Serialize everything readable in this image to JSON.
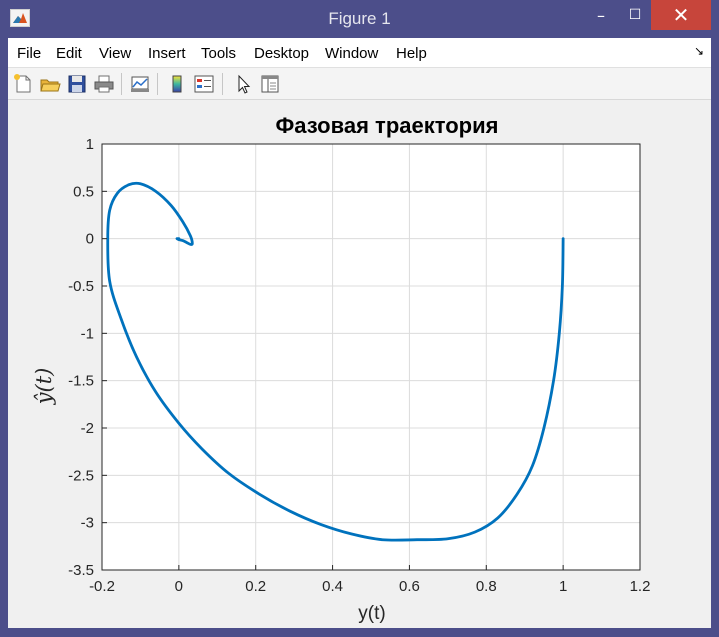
{
  "window": {
    "title": "Figure 1",
    "controls": {
      "minimize": "–",
      "maximize": "☐",
      "close": "✕"
    }
  },
  "menu": {
    "items": [
      "File",
      "Edit",
      "View",
      "Insert",
      "Tools",
      "Desktop",
      "Window",
      "Help"
    ],
    "overflow_arrow": "↘"
  },
  "toolbar": {
    "icons": [
      "new-figure-icon",
      "open-file-icon",
      "save-icon",
      "print-icon",
      "link-plot-icon",
      "insert-colorbar-icon",
      "insert-legend-icon",
      "edit-plot-arrow-icon",
      "property-editor-icon"
    ]
  },
  "colors": {
    "titlebar": "#4c4e8a",
    "close_button": "#c7453b",
    "line": "#0072bd",
    "axes_background": "#ffffff",
    "figure_background": "#f0f0f0"
  },
  "chart_data": {
    "type": "line",
    "title": "Фазовая траектория",
    "xlabel": "y(t)",
    "ylabel": "ŷ(t)",
    "xlim": [
      -0.2,
      1.2
    ],
    "ylim": [
      -3.5,
      1
    ],
    "xticks": [
      -0.2,
      0,
      0.2,
      0.4,
      0.6,
      0.8,
      1,
      1.2
    ],
    "xtick_labels": [
      "-0.2",
      "0",
      "0.2",
      "0.4",
      "0.6",
      "0.8",
      "1",
      "1.2"
    ],
    "yticks": [
      1,
      0.5,
      0,
      -0.5,
      -1,
      -1.5,
      -2,
      -2.5,
      -3,
      -3.5
    ],
    "ytick_labels": [
      "1",
      "0.5",
      "0",
      "-0.5",
      "-1",
      "-1.5",
      "-2",
      "-2.5",
      "-3",
      "-3.5"
    ],
    "grid": true,
    "series": [
      {
        "x": [
          1.0,
          0.998,
          0.99,
          0.975,
          0.95,
          0.92,
          0.88,
          0.83,
          0.77,
          0.7,
          0.62,
          0.53,
          0.45,
          0.37,
          0.29,
          0.21,
          0.13,
          0.06,
          0.0,
          -0.06,
          -0.11,
          -0.15,
          -0.18,
          -0.185,
          -0.18,
          -0.16,
          -0.13,
          -0.1,
          -0.06,
          -0.02,
          0.01,
          0.03,
          0.035,
          0.03,
          0.02,
          0.01,
          0.0,
          -0.005,
          0.0
        ],
        "y": [
          0.0,
          -0.5,
          -1.0,
          -1.5,
          -2.0,
          -2.4,
          -2.7,
          -2.95,
          -3.1,
          -3.17,
          -3.18,
          -3.18,
          -3.12,
          -3.02,
          -2.88,
          -2.7,
          -2.48,
          -2.22,
          -1.95,
          -1.62,
          -1.25,
          -0.85,
          -0.45,
          0.0,
          0.3,
          0.48,
          0.57,
          0.58,
          0.5,
          0.35,
          0.18,
          0.03,
          -0.05,
          -0.06,
          -0.04,
          -0.02,
          -0.01,
          0.0,
          0.0
        ]
      }
    ]
  }
}
